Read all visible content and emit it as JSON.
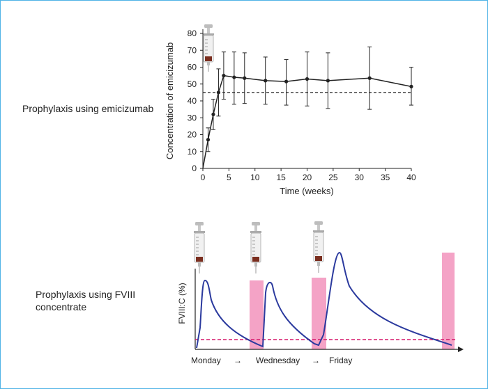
{
  "top_panel": {
    "side_label": "Prophylaxis using emicizumab"
  },
  "bottom_panel": {
    "side_label": "Prophylaxis using FVIII concentrate"
  },
  "chart_data": [
    {
      "type": "line",
      "title": "",
      "xlabel": "Time (weeks)",
      "ylabel": "Concentration of emicizumab",
      "xlim": [
        0,
        40
      ],
      "ylim": [
        0,
        80
      ],
      "xticks": [
        0,
        5,
        10,
        15,
        20,
        25,
        30,
        35,
        40
      ],
      "yticks": [
        0,
        10,
        20,
        30,
        40,
        50,
        60,
        70,
        80
      ],
      "reference_line": {
        "y": 45,
        "style": "dashed",
        "color": "#222222"
      },
      "series": [
        {
          "x": [
            0,
            1,
            2,
            3,
            4,
            6,
            8,
            12,
            16,
            20,
            24,
            32,
            40
          ],
          "y": [
            0,
            17,
            32,
            45,
            55,
            54,
            53.5,
            52,
            51.5,
            53,
            52,
            53.5,
            48.5
          ],
          "error_upper": [
            0,
            24,
            41,
            59,
            69,
            69,
            68.5,
            66,
            64.5,
            69,
            68.5,
            72,
            60
          ],
          "error_lower": [
            0,
            10,
            23,
            31,
            41,
            38,
            38.5,
            38,
            37.5,
            37,
            35.5,
            35,
            37.5
          ]
        }
      ],
      "icons": [
        "syringe-icon"
      ]
    },
    {
      "type": "line",
      "title": "",
      "xlabel": "",
      "ylabel": "FVIII:C (%)",
      "x_day_labels": [
        "Monday",
        "Wednesday",
        "Friday"
      ],
      "arrow_glyph": "→",
      "threshold_color": "#d6186b",
      "curve_color": "#2b3a9e",
      "bar_color": "#f4a3c6",
      "icons": [
        "syringe-icon",
        "syringe-icon",
        "syringe-icon"
      ]
    }
  ]
}
